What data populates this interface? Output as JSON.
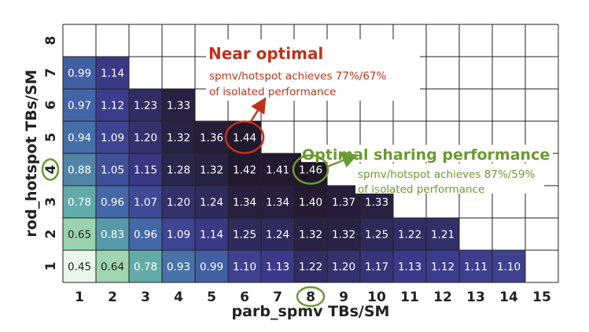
{
  "chart_data": {
    "type": "heatmap",
    "xlabel": "parb_spmv TBs/SM",
    "ylabel": "rod_hotspot TBs/SM",
    "x": [
      1,
      2,
      3,
      4,
      5,
      6,
      7,
      8,
      9,
      10,
      11,
      12,
      13,
      14,
      15
    ],
    "y": [
      1,
      2,
      3,
      4,
      5,
      6,
      7,
      8
    ],
    "rows": [
      {
        "y": 1,
        "values": [
          0.45,
          0.64,
          0.78,
          0.93,
          0.99,
          1.1,
          1.13,
          1.22,
          1.2,
          1.17,
          1.13,
          1.12,
          1.11,
          1.1
        ]
      },
      {
        "y": 2,
        "values": [
          0.65,
          0.83,
          0.96,
          1.09,
          1.14,
          1.25,
          1.24,
          1.32,
          1.32,
          1.25,
          1.22,
          1.21
        ]
      },
      {
        "y": 3,
        "values": [
          0.78,
          0.96,
          1.07,
          1.2,
          1.24,
          1.34,
          1.34,
          1.4,
          1.37,
          1.33
        ]
      },
      {
        "y": 4,
        "values": [
          0.88,
          1.05,
          1.15,
          1.28,
          1.32,
          1.42,
          1.41,
          1.46
        ]
      },
      {
        "y": 5,
        "values": [
          0.94,
          1.09,
          1.2,
          1.32,
          1.36,
          1.44
        ]
      },
      {
        "y": 6,
        "values": [
          0.97,
          1.12,
          1.23,
          1.33
        ]
      },
      {
        "y": 7,
        "values": [
          0.99,
          1.14
        ]
      },
      {
        "y": 8,
        "values": []
      }
    ],
    "annotations": [
      {
        "title": "Near optimal",
        "lines": [
          "spmv/hotspot achieves 77%/67%",
          "of isolated performance"
        ],
        "target": {
          "x": 6,
          "y": 5
        },
        "color": "#c0311c"
      },
      {
        "title": "Optimal sharing performance",
        "lines": [
          "spmv/hotspot achieves 87%/59%",
          "of isolated performance"
        ],
        "target": {
          "x": 8,
          "y": 4
        },
        "color": "#6a9a32"
      }
    ],
    "highlighted_ticks": {
      "x": 8,
      "y": 4
    },
    "colormap": [
      "#eaf6ea",
      "#a9dcb1",
      "#5fa9a8",
      "#4468a8",
      "#3c3b8c",
      "#2a2448",
      "#201628"
    ],
    "color_range": [
      0.45,
      1.46
    ]
  }
}
